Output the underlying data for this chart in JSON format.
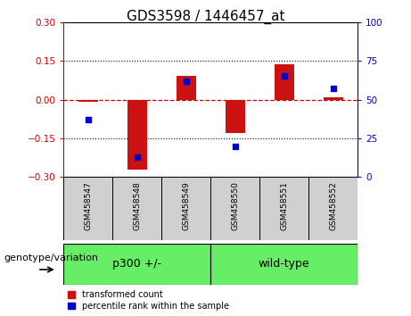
{
  "title": "GDS3598 / 1446457_at",
  "samples": [
    "GSM458547",
    "GSM458548",
    "GSM458549",
    "GSM458550",
    "GSM458551",
    "GSM458552"
  ],
  "transformed_counts": [
    -0.01,
    -0.27,
    0.09,
    -0.13,
    0.135,
    0.01
  ],
  "percentile_ranks": [
    37,
    13,
    62,
    20,
    65,
    57
  ],
  "ylim_left": [
    -0.3,
    0.3
  ],
  "ylim_right": [
    0,
    100
  ],
  "yticks_left": [
    -0.3,
    -0.15,
    0,
    0.15,
    0.3
  ],
  "yticks_right": [
    0,
    25,
    50,
    75,
    100
  ],
  "bar_color": "#CC1111",
  "dot_color": "#0000CC",
  "zero_line_color": "#CC0000",
  "sample_box_color": "#D0D0D0",
  "group_box_color": "#66EE66",
  "plot_bg_color": "#FFFFFF",
  "left_axis_color": "#CC0000",
  "right_axis_color": "#0000CC",
  "label_genotype": "genotype/variation",
  "group1_label": "p300 +/-",
  "group2_label": "wild-type",
  "title_fontsize": 11,
  "tick_fontsize": 7.5,
  "sample_fontsize": 6.5,
  "group_fontsize": 9,
  "legend_fontsize": 7,
  "genotype_fontsize": 8
}
